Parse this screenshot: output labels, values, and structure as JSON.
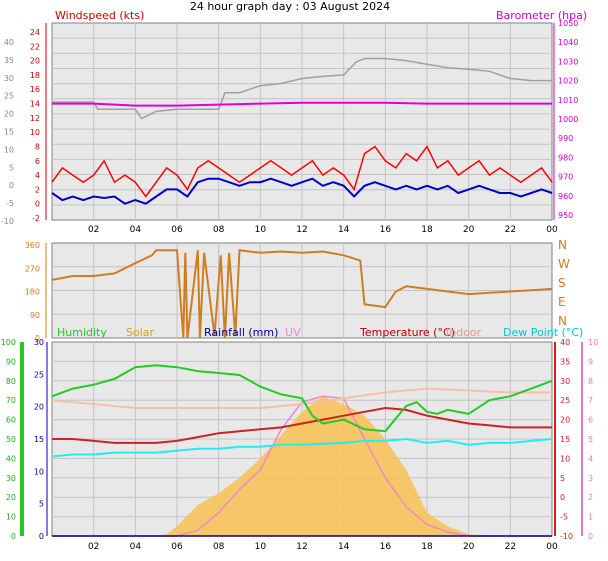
{
  "title": "24 hour graph day : 03 August 2024",
  "x_tick_labels": [
    "02",
    "04",
    "06",
    "08",
    "10",
    "12",
    "14",
    "16",
    "18",
    "20",
    "22",
    "00"
  ],
  "colors": {
    "plot_bg": "#e8e8e8",
    "grid": "#c4c4c4",
    "wind_gust": "#ff0000",
    "wind_avg": "#0000cc",
    "wind_gray": "#a0a0a0",
    "barometer": "#dd00dd",
    "direction": "#d07c20",
    "humidity": "#22cc22",
    "solar": "#f7c35a",
    "rainfall": "#0000aa",
    "uv": "#ee88cc",
    "temperature": "#cc2222",
    "indoor": "#f5bfa8",
    "dewpoint": "#22eeee"
  },
  "chart_data": [
    {
      "type": "line",
      "name": "wind-barometer",
      "labels": {
        "windspeed": "Windspeed (kts)",
        "barometer": "Barometer (hpa)"
      },
      "left_axis_ticks": [
        "24",
        "22",
        "20",
        "18",
        "16",
        "14",
        "12",
        "10",
        "8",
        "6",
        "4",
        "2",
        "0",
        "-2"
      ],
      "outer_axis_ticks": [
        "40",
        "35",
        "30",
        "25",
        "20",
        "15",
        "10",
        "5",
        "0",
        "-5",
        "-10"
      ],
      "right_axis_ticks": [
        "1050",
        "1040",
        "1030",
        "1020",
        "1010",
        "1000",
        "990",
        "980",
        "970",
        "960",
        "950"
      ],
      "series": [
        {
          "key": "wind_gray",
          "x": [
            0,
            1,
            2,
            2.2,
            3,
            4,
            4.3,
            5,
            6,
            7,
            8,
            8.3,
            9,
            10,
            11,
            12,
            13,
            14,
            14.6,
            15,
            16,
            17,
            18,
            19,
            20,
            21,
            22,
            23,
            24
          ],
          "y": [
            14.2,
            14.2,
            14.2,
            13.2,
            13.2,
            13.2,
            11.9,
            12.9,
            13.2,
            13.2,
            13.2,
            15.5,
            15.5,
            16.5,
            16.8,
            17.5,
            17.8,
            18.0,
            19.8,
            20.3,
            20.3,
            20.0,
            19.5,
            19.0,
            18.8,
            18.5,
            17.5,
            17.2,
            17.2
          ]
        },
        {
          "key": "barometer",
          "x": [
            0,
            2,
            4,
            6,
            8,
            10,
            12,
            14,
            16,
            18,
            20,
            22,
            24
          ],
          "y": [
            1008,
            1008,
            1007,
            1007,
            1007.5,
            1008,
            1008.5,
            1008.5,
            1008.5,
            1008,
            1008,
            1008,
            1008
          ]
        },
        {
          "key": "wind_gust",
          "x": [
            0,
            0.5,
            1,
            1.5,
            2,
            2.5,
            3,
            3.5,
            4,
            4.5,
            5,
            5.5,
            6,
            6.5,
            7,
            7.5,
            8,
            8.5,
            9,
            9.5,
            10,
            10.5,
            11,
            11.5,
            12,
            12.5,
            13,
            13.5,
            14,
            14.5,
            15,
            15.5,
            16,
            16.5,
            17,
            17.5,
            18,
            18.5,
            19,
            19.5,
            20,
            20.5,
            21,
            21.5,
            22,
            22.5,
            23,
            23.5,
            24
          ],
          "y": [
            3,
            5,
            4,
            3,
            4,
            6,
            3,
            4,
            3,
            1,
            3,
            5,
            4,
            2,
            5,
            6,
            5,
            4,
            3,
            4,
            5,
            6,
            5,
            4,
            5,
            6,
            4,
            5,
            4,
            2,
            7,
            8,
            6,
            5,
            7,
            6,
            8,
            5,
            6,
            4,
            5,
            6,
            4,
            5,
            4,
            3,
            4,
            5,
            3
          ]
        },
        {
          "key": "wind_avg",
          "x": [
            0,
            0.5,
            1,
            1.5,
            2,
            2.5,
            3,
            3.5,
            4,
            4.5,
            5,
            5.5,
            6,
            6.5,
            7,
            7.5,
            8,
            8.5,
            9,
            9.5,
            10,
            10.5,
            11,
            11.5,
            12,
            12.5,
            13,
            13.5,
            14,
            14.5,
            15,
            15.5,
            16,
            16.5,
            17,
            17.5,
            18,
            18.5,
            19,
            19.5,
            20,
            20.5,
            21,
            21.5,
            22,
            22.5,
            23,
            23.5,
            24
          ],
          "y": [
            1.5,
            0.5,
            1,
            0.5,
            1,
            0.8,
            1,
            0,
            0.5,
            0,
            1,
            2,
            2,
            1,
            3,
            3.5,
            3.5,
            3,
            2.5,
            3,
            3,
            3.5,
            3,
            2.5,
            3,
            3.5,
            2.5,
            3,
            2.5,
            1,
            2.5,
            3,
            2.5,
            2,
            2.5,
            2,
            2.5,
            2,
            2.5,
            1.5,
            2,
            2.5,
            2,
            1.5,
            1.5,
            1,
            1.5,
            2,
            1.5
          ]
        }
      ]
    },
    {
      "type": "line",
      "name": "wind-direction",
      "left_axis_ticks": [
        "360",
        "270",
        "180",
        "90",
        "0"
      ],
      "compass_labels": [
        "N",
        "W",
        "S",
        "E",
        "N"
      ],
      "series": [
        {
          "key": "direction",
          "x": [
            0,
            1,
            2,
            3,
            4,
            4.8,
            5,
            6,
            6.3,
            6.4,
            6.5,
            7,
            7.1,
            7.3,
            7.8,
            8.1,
            8.3,
            8.5,
            8.8,
            9,
            10,
            11,
            12,
            13,
            14,
            14.8,
            15,
            16,
            16.5,
            17,
            18,
            19,
            20,
            21,
            22,
            23,
            24
          ],
          "y": [
            225,
            240,
            240,
            250,
            290,
            320,
            340,
            340,
            0,
            330,
            0,
            340,
            0,
            330,
            10,
            320,
            0,
            330,
            10,
            340,
            330,
            335,
            330,
            335,
            320,
            300,
            130,
            120,
            180,
            200,
            190,
            180,
            170,
            175,
            180,
            185,
            190
          ]
        }
      ]
    },
    {
      "type": "line",
      "name": "humidity-solar-rain-temperature",
      "legend": [
        "Humidity",
        "Solar",
        "Rainfall (mm)",
        "UV",
        "Temperature (°C)",
        "Indoor",
        "Dew Point (°C)"
      ],
      "humidity_ticks": [
        "100",
        "90",
        "80",
        "70",
        "60",
        "50",
        "40",
        "30",
        "20",
        "10",
        "0"
      ],
      "rainfall_ticks": [
        "30",
        "25",
        "20",
        "15",
        "10",
        "5",
        "0"
      ],
      "temperature_ticks": [
        "40",
        "35",
        "30",
        "25",
        "20",
        "15",
        "10",
        "5",
        "0",
        "-5",
        "-10"
      ],
      "uv_ticks": [
        "10",
        "9",
        "8",
        "7",
        "6",
        "5",
        "4",
        "3",
        "2",
        "1",
        "0"
      ],
      "series": [
        {
          "key": "solar",
          "x": [
            0,
            1,
            2,
            3,
            4,
            5,
            5.5,
            6,
            7,
            8,
            9,
            10,
            11,
            12,
            13,
            14,
            15,
            16,
            17,
            18,
            19,
            20,
            21,
            22,
            23,
            24
          ],
          "y": [
            0,
            0,
            0,
            0,
            0,
            0,
            5,
            25,
            80,
            110,
            150,
            200,
            260,
            320,
            360,
            340,
            310,
            250,
            170,
            60,
            25,
            5,
            0,
            0,
            0,
            0
          ]
        },
        {
          "key": "uv",
          "x": [
            0,
            1,
            2,
            3,
            4,
            5,
            6,
            7,
            8,
            9,
            10,
            11,
            12,
            13,
            14,
            15,
            16,
            17,
            18,
            19,
            20,
            21,
            22,
            23,
            24
          ],
          "y": [
            0,
            0,
            0,
            0,
            0,
            0,
            0,
            0.3,
            1.2,
            2.4,
            3.4,
            5.5,
            6.9,
            7.2,
            7.1,
            5.0,
            3.0,
            1.5,
            0.6,
            0.2,
            0,
            0,
            0,
            0,
            0
          ]
        },
        {
          "key": "humidity",
          "x": [
            0,
            1,
            2,
            3,
            4,
            5,
            6,
            7,
            8,
            9,
            10,
            11,
            12,
            12.5,
            13,
            14,
            15,
            16,
            17,
            17.5,
            18,
            18.5,
            19,
            20,
            21,
            22,
            23,
            24
          ],
          "y": [
            72,
            76,
            78,
            81,
            87,
            88,
            87,
            85,
            84,
            83,
            77,
            73,
            71,
            62,
            58,
            60,
            55,
            54,
            67,
            69,
            64,
            63,
            65,
            63,
            70,
            72,
            76,
            80
          ]
        },
        {
          "key": "indoor",
          "x": [
            0,
            2,
            4,
            6,
            8,
            10,
            12,
            14,
            16,
            18,
            20,
            22,
            24
          ],
          "y": [
            25,
            24,
            23,
            23,
            23,
            23,
            24,
            25.5,
            27,
            28,
            27.5,
            27,
            27
          ]
        },
        {
          "key": "temperature",
          "x": [
            0,
            1,
            2,
            3,
            4,
            5,
            6,
            7,
            8,
            9,
            10,
            11,
            12,
            13,
            14,
            15,
            16,
            17,
            18,
            19,
            20,
            21,
            22,
            23,
            24
          ],
          "y": [
            15,
            15,
            14.5,
            14,
            14,
            14,
            14.5,
            15.5,
            16.5,
            17,
            17.5,
            18,
            19,
            20,
            21,
            22,
            23,
            22.5,
            21,
            20,
            19,
            18.5,
            18,
            18,
            18
          ]
        },
        {
          "key": "dewpoint",
          "x": [
            0,
            1,
            2,
            3,
            4,
            5,
            6,
            7,
            8,
            9,
            10,
            11,
            12,
            13,
            14,
            15,
            16,
            17,
            18,
            19,
            20,
            21,
            22,
            23,
            24
          ],
          "y": [
            10.5,
            11,
            11,
            11.5,
            11.5,
            11.5,
            12,
            12.5,
            12.5,
            13,
            13,
            13.5,
            13.5,
            13.8,
            14,
            14.5,
            14.5,
            15,
            14,
            14.5,
            13.5,
            14,
            14,
            14.5,
            15
          ]
        },
        {
          "key": "rainfall",
          "x": [
            0,
            24
          ],
          "y": [
            0,
            0
          ]
        }
      ]
    }
  ]
}
